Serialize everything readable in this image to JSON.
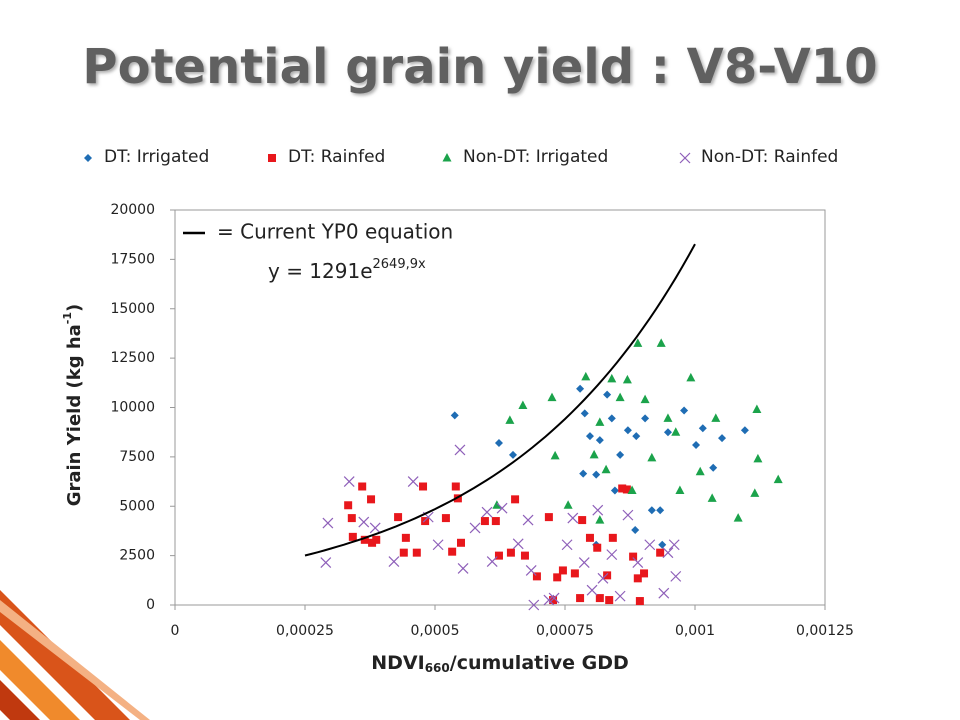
{
  "chart_data": {
    "type": "scatter",
    "title": "Potential grain yield : V8-V10",
    "x_label": [
      "NDVI",
      "660",
      "/cumulative GDD"
    ],
    "y_label": [
      "Grain Yield (kg ha",
      "-1",
      ")"
    ],
    "xlim": [
      0,
      0.00125
    ],
    "xticks": [
      0,
      {
        "value": 0.00025,
        "label": "0,00025"
      },
      {
        "value": 0.0005,
        "label": "0,0005"
      },
      {
        "value": 0.00075,
        "label": "0,00075"
      },
      {
        "value": 0.001,
        "label": "0,001"
      },
      {
        "value": 0.00125,
        "label": "0,00125"
      }
    ],
    "ylim": [
      0,
      20000
    ],
    "yticks": [
      0,
      2500,
      5000,
      7500,
      10000,
      12500,
      15000,
      17500,
      20000
    ],
    "legend": "top",
    "fit": {
      "label": "= Current YP0 equation",
      "equation": "y = 1291e",
      "exponent": "2649,9x",
      "a": 1291,
      "b": 2649.9,
      "xlim": [
        0.00025,
        0.001
      ],
      "color": "#000000"
    },
    "series": [
      {
        "name": "DT: Irrigated",
        "marker": "diamond",
        "color": "#1f6db4",
        "x": [
          0.000538,
          0.000623,
          0.00065,
          0.000779,
          0.000785,
          0.000788,
          0.000798,
          0.00081,
          0.000817,
          0.000831,
          0.00084,
          0.000846,
          0.000856,
          0.000871,
          0.000887,
          0.000904,
          0.000917,
          0.000933,
          0.000948,
          0.000979,
          0.001002,
          0.001015,
          0.001035,
          0.001052,
          0.001096,
          0.00081,
          0.000885,
          0.000937
        ],
        "values": [
          9600,
          8200,
          7600,
          10950,
          6650,
          9700,
          8550,
          6600,
          8350,
          10650,
          9450,
          5800,
          7600,
          8850,
          8550,
          9450,
          4800,
          4800,
          8750,
          9850,
          8100,
          8950,
          6950,
          8450,
          8850,
          3050,
          3800,
          3050
        ]
      },
      {
        "name": "DT: Rainfed",
        "marker": "square",
        "color": "#e8171c",
        "x": [
          0.000333,
          0.00034,
          0.000342,
          0.00036,
          0.000365,
          0.000377,
          0.000379,
          0.000387,
          0.000429,
          0.00044,
          0.000444,
          0.000465,
          0.000477,
          0.000481,
          0.000521,
          0.000533,
          0.00054,
          0.000544,
          0.00055,
          0.000596,
          0.000617,
          0.000623,
          0.000646,
          0.000654,
          0.000673,
          0.000696,
          0.000719,
          0.000727,
          0.000735,
          0.000746,
          0.000769,
          0.000779,
          0.000783,
          0.000798,
          0.000812,
          0.000817,
          0.000831,
          0.000842,
          0.00086,
          0.000869,
          0.000881,
          0.00089,
          0.000894,
          0.000902,
          0.000933,
          0.000835
        ],
        "values": [
          5050,
          4400,
          3450,
          6000,
          3300,
          5350,
          3150,
          3300,
          4450,
          2650,
          3400,
          2650,
          6000,
          4250,
          4400,
          2700,
          6000,
          5400,
          3150,
          4250,
          4250,
          2500,
          2650,
          5350,
          2500,
          1450,
          4450,
          250,
          1400,
          1750,
          1600,
          350,
          4300,
          3400,
          2900,
          350,
          1500,
          3400,
          5900,
          5850,
          2450,
          1350,
          200,
          1600,
          2650,
          250
        ]
      },
      {
        "name": "Non-DT: Irrigated",
        "marker": "triangle",
        "color": "#1ba34b",
        "x": [
          0.000619,
          0.000644,
          0.000669,
          0.000725,
          0.000731,
          0.000756,
          0.00079,
          0.000806,
          0.000817,
          0.000829,
          0.00084,
          0.000856,
          0.00087,
          0.000879,
          0.00089,
          0.000904,
          0.000917,
          0.000935,
          0.000948,
          0.000963,
          0.000992,
          0.00101,
          0.001033,
          0.00104,
          0.001083,
          0.001119,
          0.001121,
          0.001115,
          0.00116,
          0.000971,
          0.000817
        ],
        "values": [
          5050,
          9350,
          10100,
          10500,
          7550,
          5050,
          11550,
          7600,
          4300,
          6850,
          11450,
          10500,
          11400,
          5800,
          13250,
          10400,
          7450,
          13250,
          9450,
          8750,
          11500,
          6750,
          5400,
          9450,
          4400,
          9900,
          7400,
          5650,
          6350,
          5800,
          9250
        ]
      },
      {
        "name": "Non-DT: Rainfed",
        "marker": "x",
        "color": "#8e5fb9",
        "x": [
          0.00029,
          0.000294,
          0.000335,
          0.000363,
          0.000385,
          0.000421,
          0.000458,
          0.000487,
          0.000506,
          0.000548,
          0.000554,
          0.000577,
          0.0006,
          0.00061,
          0.000629,
          0.00066,
          0.000679,
          0.000685,
          0.00069,
          0.000719,
          0.000729,
          0.000754,
          0.000765,
          0.000787,
          0.000802,
          0.000813,
          0.000823,
          0.00084,
          0.000856,
          0.000871,
          0.00089,
          0.000913,
          0.00094,
          0.000948,
          0.00096,
          0.000963
        ],
        "values": [
          2150,
          4150,
          6250,
          4200,
          3900,
          2200,
          6250,
          4450,
          3050,
          7850,
          1850,
          3900,
          4700,
          2200,
          4900,
          3100,
          4300,
          1750,
          0,
          250,
          350,
          3050,
          4400,
          2150,
          750,
          4800,
          1350,
          2550,
          450,
          4550,
          2150,
          3050,
          600,
          2650,
          3050,
          1450
        ]
      }
    ]
  }
}
